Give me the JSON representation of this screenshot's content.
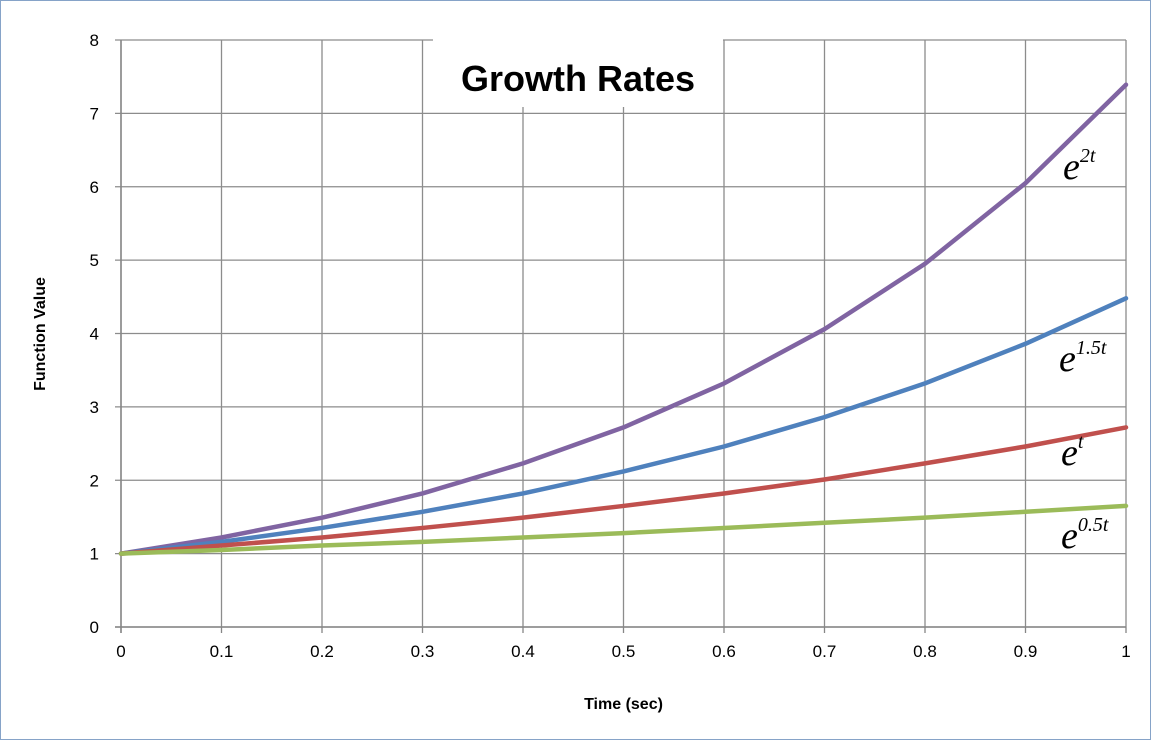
{
  "chart_data": {
    "type": "line",
    "title": "Growth Rates",
    "xlabel": "Time (sec)",
    "ylabel": "Function Value",
    "x": [
      0,
      0.1,
      0.2,
      0.3,
      0.4,
      0.5,
      0.6,
      0.7,
      0.8,
      0.9,
      1
    ],
    "xlim": [
      0,
      1
    ],
    "ylim": [
      0,
      8
    ],
    "x_ticks": [
      "0",
      "0.1",
      "0.2",
      "0.3",
      "0.4",
      "0.5",
      "0.6",
      "0.7",
      "0.8",
      "0.9",
      "1"
    ],
    "y_ticks": [
      "0",
      "1",
      "2",
      "3",
      "4",
      "5",
      "6",
      "7",
      "8"
    ],
    "grid": true,
    "series": [
      {
        "color": "#8064a2",
        "label_base": "e",
        "label_exp": "2t",
        "values": [
          1.0,
          1.22,
          1.49,
          1.82,
          2.23,
          2.72,
          3.32,
          4.06,
          4.95,
          6.05,
          7.39
        ]
      },
      {
        "color": "#4f81bd",
        "label_base": "e",
        "label_exp": "1.5t",
        "values": [
          1.0,
          1.16,
          1.35,
          1.57,
          1.82,
          2.12,
          2.46,
          2.86,
          3.32,
          3.86,
          4.48
        ]
      },
      {
        "color": "#c0504d",
        "label_base": "e",
        "label_exp": "t",
        "values": [
          1.0,
          1.11,
          1.22,
          1.35,
          1.49,
          1.65,
          1.82,
          2.01,
          2.23,
          2.46,
          2.72
        ]
      },
      {
        "color": "#9bbb59",
        "label_base": "e",
        "label_exp": "0.5t",
        "values": [
          1.0,
          1.05,
          1.11,
          1.16,
          1.22,
          1.28,
          1.35,
          1.42,
          1.49,
          1.57,
          1.65
        ]
      }
    ]
  }
}
